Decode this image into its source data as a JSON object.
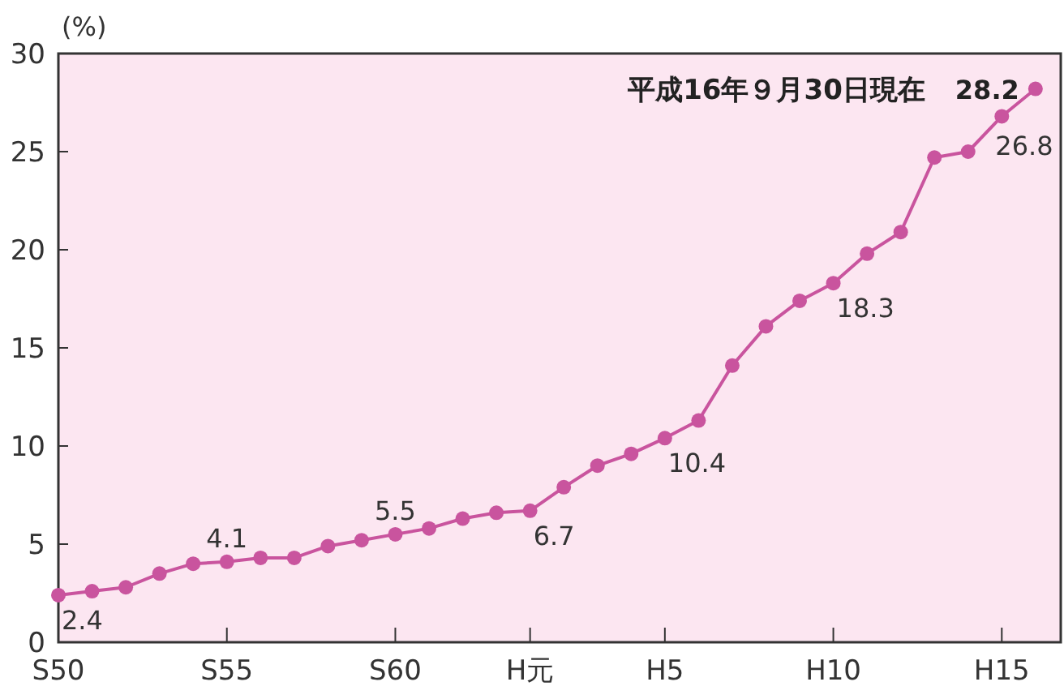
{
  "chart_data": {
    "type": "line",
    "ylabel": "(%)",
    "annotations": [
      "平成16年９月30日現在"
    ],
    "categories": [
      "S50",
      null,
      null,
      null,
      null,
      "S55",
      null,
      null,
      null,
      null,
      "S60",
      null,
      null,
      null,
      "H元",
      null,
      null,
      null,
      "H5",
      null,
      null,
      null,
      null,
      "H10",
      null,
      null,
      null,
      null,
      "H15",
      null
    ],
    "series": [
      {
        "color": "#c9549e",
        "values": [
          2.4,
          2.6,
          2.8,
          3.5,
          4.0,
          4.1,
          4.3,
          4.3,
          4.9,
          5.2,
          5.5,
          5.8,
          6.3,
          6.6,
          6.7,
          7.9,
          9.0,
          9.6,
          10.4,
          11.3,
          14.1,
          16.1,
          17.4,
          18.3,
          19.8,
          20.9,
          24.7,
          25.0,
          26.8,
          28.2
        ],
        "value_labels": [
          "2.4",
          null,
          null,
          null,
          null,
          "4.1",
          null,
          null,
          null,
          null,
          "5.5",
          null,
          null,
          null,
          "6.7",
          null,
          null,
          null,
          "10.4",
          null,
          null,
          null,
          null,
          "18.3",
          null,
          null,
          null,
          null,
          "26.8",
          "28.2"
        ]
      }
    ],
    "ylim": [
      0,
      30
    ],
    "yticks": [
      0,
      5,
      10,
      15,
      20,
      25,
      30
    ],
    "marker": "circle",
    "line_style": "solid",
    "grid": false
  }
}
